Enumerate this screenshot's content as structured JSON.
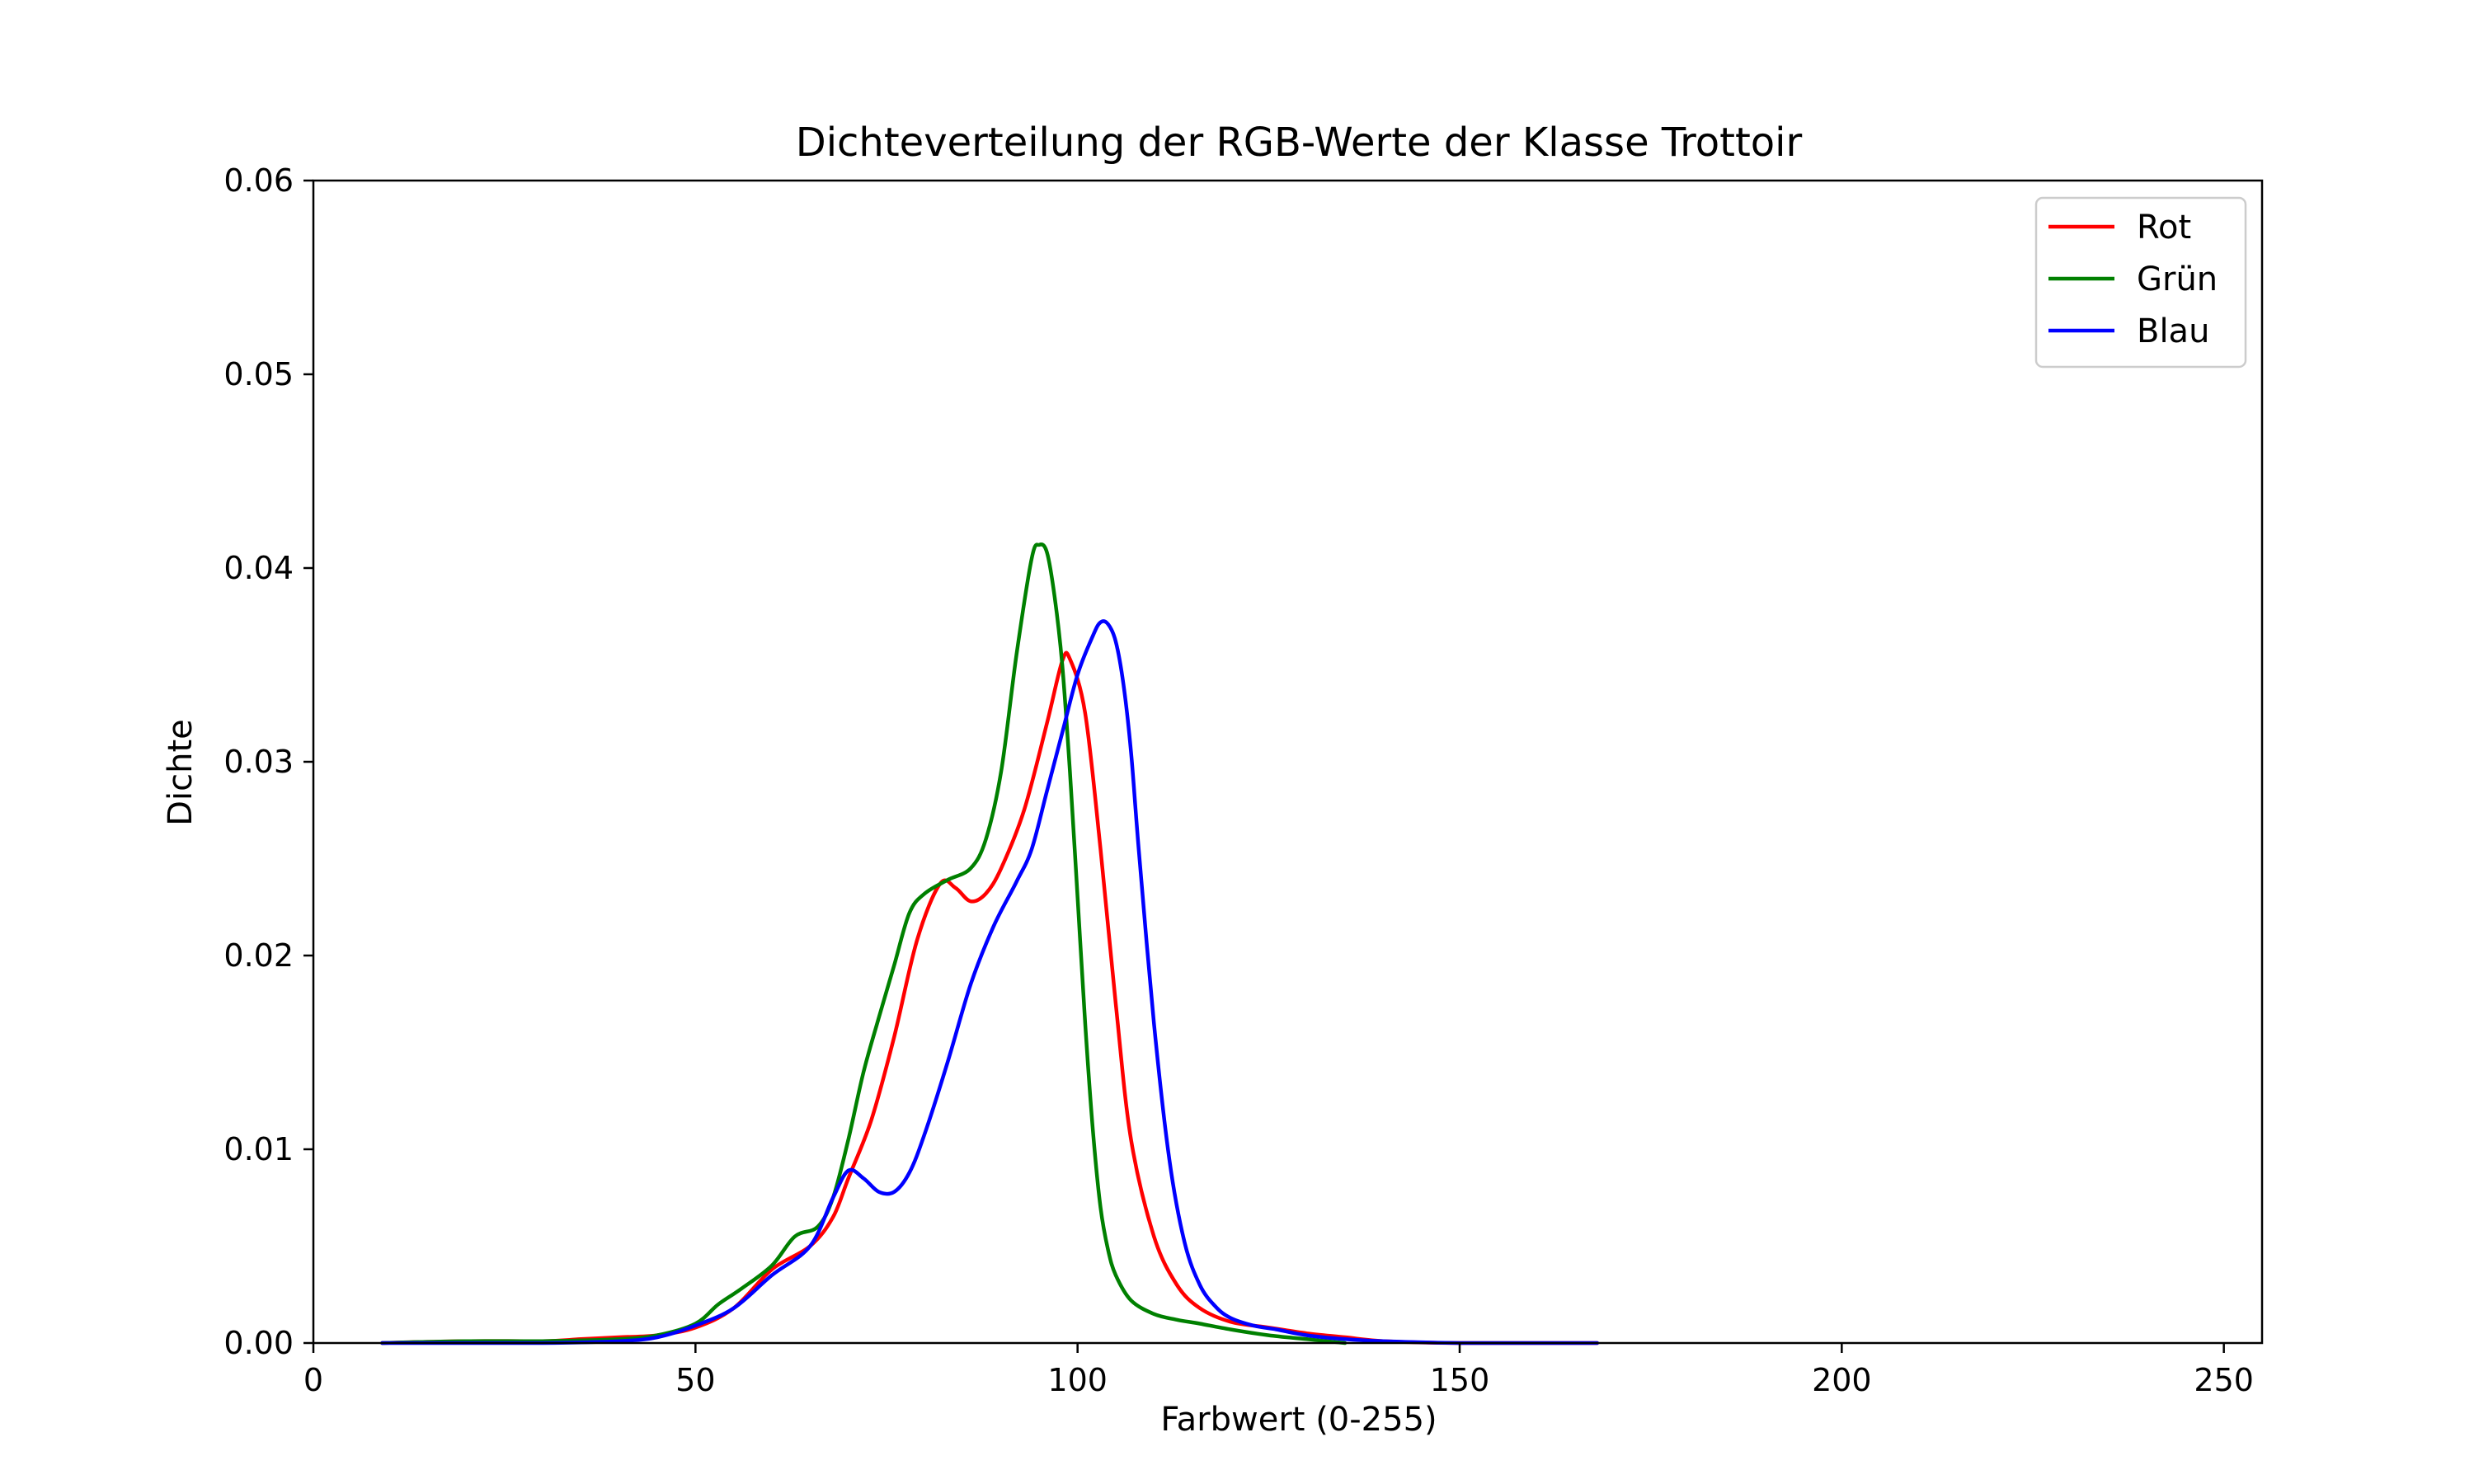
{
  "chart_data": {
    "type": "line",
    "title": "Dichteverteilung der RGB-Werte der Klasse Trottoir",
    "xlabel": "Farbwert (0-255)",
    "ylabel": "Dichte",
    "xlim": [
      0,
      255
    ],
    "ylim": [
      0,
      0.06
    ],
    "xticks": [
      0,
      50,
      100,
      150,
      200,
      250
    ],
    "xtick_labels": [
      "0",
      "50",
      "100",
      "150",
      "200",
      "250"
    ],
    "yticks": [
      0,
      0.01,
      0.02,
      0.03,
      0.04,
      0.05,
      0.06
    ],
    "ytick_labels": [
      "0.00",
      "0.01",
      "0.02",
      "0.03",
      "0.04",
      "0.05",
      "0.06"
    ],
    "grid": false,
    "legend_position": "top-right",
    "series": [
      {
        "name": "Rot",
        "color": "#ff0000",
        "x": [
          9,
          20,
          30,
          35,
          40,
          45,
          50,
          55,
          60,
          65,
          68,
          70,
          73,
          76,
          79,
          82,
          84,
          86,
          88,
          90,
          93,
          96,
          98,
          99,
          101,
          103,
          105,
          107,
          110,
          113,
          116,
          120,
          125,
          130,
          135,
          140,
          150,
          168
        ],
        "y": [
          0,
          0.0001,
          0.0001,
          0.0002,
          0.0003,
          0.0004,
          0.0008,
          0.0018,
          0.0038,
          0.005,
          0.0065,
          0.0085,
          0.0115,
          0.0158,
          0.0208,
          0.0237,
          0.0235,
          0.0228,
          0.0232,
          0.0245,
          0.0275,
          0.032,
          0.0352,
          0.0353,
          0.0325,
          0.0255,
          0.0175,
          0.0105,
          0.0055,
          0.003,
          0.0018,
          0.0011,
          0.0008,
          0.0005,
          0.0003,
          0.0001,
          0,
          0
        ]
      },
      {
        "name": "Grün",
        "color": "#008000",
        "x": [
          9,
          20,
          30,
          40,
          45,
          50,
          53,
          56,
          60,
          63,
          66,
          68,
          70,
          72,
          74,
          76,
          78,
          80,
          83,
          86,
          88,
          90,
          92,
          94,
          95,
          96,
          97,
          98,
          99,
          100,
          101,
          102,
          103,
          104,
          105,
          107,
          110,
          113,
          116,
          120,
          125,
          130,
          135
        ],
        "y": [
          0,
          0.0001,
          0.0001,
          0.0002,
          0.0004,
          0.001,
          0.002,
          0.0028,
          0.004,
          0.0055,
          0.006,
          0.0075,
          0.0105,
          0.014,
          0.0168,
          0.0195,
          0.0222,
          0.0232,
          0.0239,
          0.0245,
          0.026,
          0.0295,
          0.0355,
          0.0405,
          0.0412,
          0.0408,
          0.0385,
          0.035,
          0.0295,
          0.023,
          0.0165,
          0.011,
          0.007,
          0.0048,
          0.0035,
          0.0022,
          0.0015,
          0.0012,
          0.001,
          0.0007,
          0.0004,
          0.0002,
          0
        ]
      },
      {
        "name": "Blau",
        "color": "#0000ff",
        "x": [
          9,
          20,
          30,
          40,
          45,
          50,
          55,
          60,
          65,
          68,
          70,
          72,
          74,
          76,
          78,
          80,
          83,
          86,
          89,
          92,
          94,
          96,
          98,
          100,
          102,
          103,
          104,
          105,
          106,
          107,
          108,
          110,
          112,
          114,
          116,
          118,
          120,
          123,
          126,
          130,
          135,
          140,
          150,
          168
        ],
        "y": [
          0,
          0,
          0,
          0.0001,
          0.0003,
          0.0009,
          0.0018,
          0.0035,
          0.005,
          0.0075,
          0.0089,
          0.0085,
          0.0078,
          0.0078,
          0.0088,
          0.0108,
          0.0145,
          0.0185,
          0.0215,
          0.0238,
          0.0255,
          0.0285,
          0.0315,
          0.0345,
          0.0365,
          0.0372,
          0.0371,
          0.0362,
          0.034,
          0.0305,
          0.0255,
          0.0165,
          0.0095,
          0.0052,
          0.003,
          0.0019,
          0.0013,
          0.0009,
          0.0007,
          0.0004,
          0.0002,
          0.0001,
          0,
          0
        ]
      }
    ]
  }
}
